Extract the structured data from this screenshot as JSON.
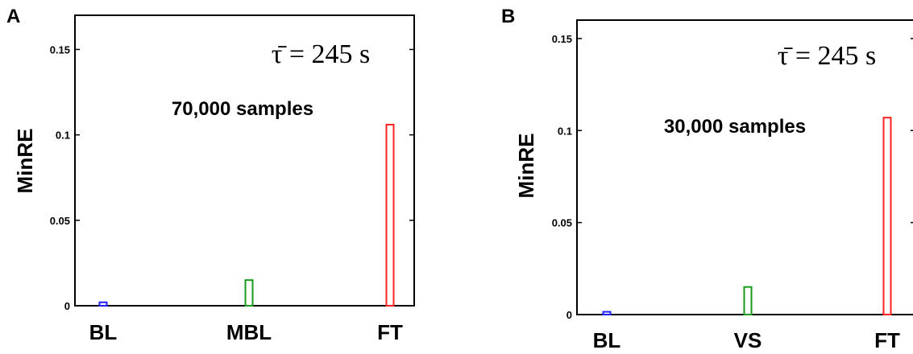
{
  "chart_data": [
    {
      "type": "bar",
      "panel_label": "A",
      "ylabel": "MinRE",
      "ylim": [
        0,
        0.17
      ],
      "yticks": [
        "0",
        "0.05",
        "0.1",
        "0.15"
      ],
      "categories": [
        "BL",
        "MBL",
        "FT"
      ],
      "values": [
        0.002,
        0.015,
        0.106
      ],
      "bar_colors": [
        "#2020ff",
        "#1a9a1a",
        "#ff2020"
      ],
      "formula": "τ̄ = 245 s",
      "annotation": "70,000 samples",
      "grid": false,
      "legend": "none"
    },
    {
      "type": "bar",
      "panel_label": "B",
      "ylabel": "MinRE",
      "ylim": [
        0,
        0.16
      ],
      "yticks": [
        "0",
        "0.05",
        "0.1",
        "0.15"
      ],
      "categories": [
        "BL",
        "VS",
        "FT"
      ],
      "values": [
        0.0015,
        0.015,
        0.107
      ],
      "bar_colors": [
        "#2020ff",
        "#1a9a1a",
        "#ff2020"
      ],
      "formula": "τ̄ = 245 s",
      "annotation": "30,000 samples",
      "grid": false,
      "legend": "none"
    }
  ]
}
